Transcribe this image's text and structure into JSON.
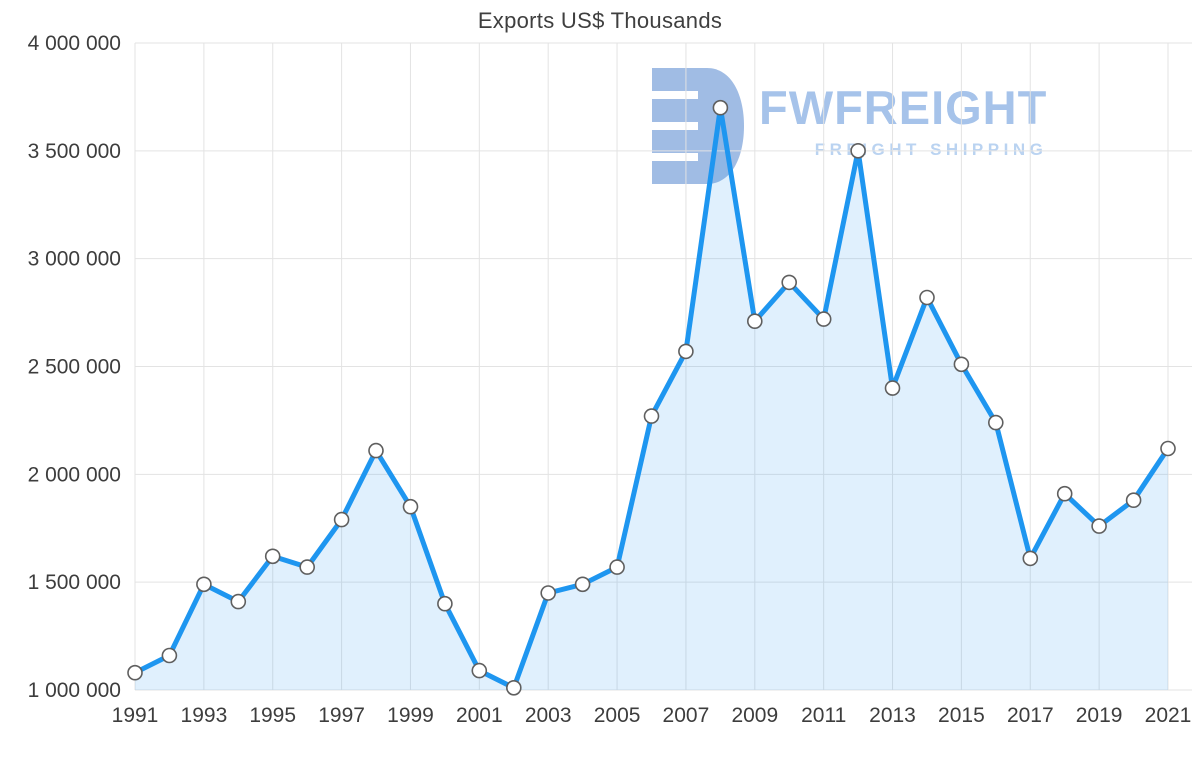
{
  "title": "Exports US$ Thousands",
  "watermark": {
    "brand": "FWFREIGHT",
    "tagline": "FREIGHT SHIPPING",
    "brand_color": "#a6c3ea",
    "tagline_color": "#bad3f1",
    "logo_color": "#a0bce4"
  },
  "chart_data": {
    "type": "area",
    "title": "Exports US$ Thousands",
    "xlabel": "",
    "ylabel": "",
    "x": [
      1991,
      1992,
      1993,
      1994,
      1995,
      1996,
      1997,
      1998,
      1999,
      2000,
      2001,
      2002,
      2003,
      2004,
      2005,
      2006,
      2007,
      2008,
      2009,
      2010,
      2011,
      2012,
      2013,
      2014,
      2015,
      2016,
      2017,
      2018,
      2019,
      2020,
      2021
    ],
    "values": [
      1080000,
      1160000,
      1490000,
      1410000,
      1620000,
      1570000,
      1790000,
      2110000,
      1850000,
      1400000,
      1090000,
      1010000,
      1450000,
      1490000,
      1570000,
      2270000,
      2570000,
      3700000,
      2710000,
      2890000,
      2720000,
      3500000,
      2400000,
      2820000,
      2510000,
      2240000,
      1610000,
      1910000,
      1760000,
      1880000,
      2120000
    ],
    "ylim": [
      1000000,
      4000000
    ],
    "y_ticks": [
      1000000,
      1500000,
      2000000,
      2500000,
      3000000,
      3500000,
      4000000
    ],
    "y_tick_labels": [
      "1 000 000",
      "1 500 000",
      "2 000 000",
      "2 500 000",
      "3 000 000",
      "3 500 000",
      "4 000 000"
    ],
    "x_tick_years": [
      1991,
      1993,
      1995,
      1997,
      1999,
      2001,
      2003,
      2005,
      2007,
      2009,
      2011,
      2013,
      2015,
      2017,
      2019,
      2021
    ],
    "grid": true,
    "legend": false,
    "line_color": "#1e96f0",
    "area_color": "rgba(33,150,243,0.14)",
    "marker_fill": "#ffffff",
    "marker_stroke": "#5f5f5f",
    "grid_color": "#e3e3e3",
    "tick_color": "#3d3d3d"
  }
}
